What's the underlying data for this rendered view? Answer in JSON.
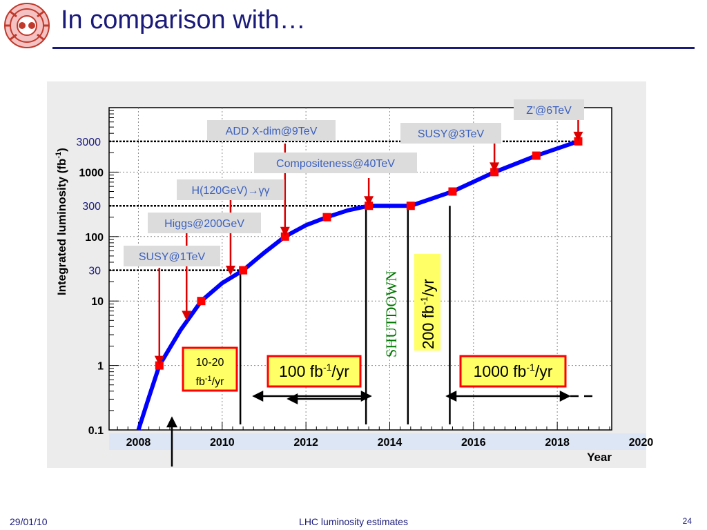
{
  "slide": {
    "title": "In comparison with…",
    "footer_date": "29/01/10",
    "footer_center": "LHC luminosity estimates",
    "page_number": "24",
    "logo_icon": "lhc-magnet-logo-icon"
  },
  "colors": {
    "title": "#1a1a7a",
    "curve": "#0000ff",
    "marker": "#ff0000",
    "arrow": "#dd0000",
    "callout_bg": "#dcdcdc",
    "callout_text": "#3a5fbe",
    "highlight_bg": "#ffff66",
    "highlight_border": "#ff0000",
    "shutdown": "#007700",
    "year_strip": "#dce6f4"
  },
  "chart_data": {
    "type": "line",
    "ylabel": "Integrated luminosity (fb",
    "ylabel_sup": "-1",
    "ylabel_close": ")",
    "xlabel": "Year",
    "y_scale": "log",
    "ylim": [
      0.1,
      10000
    ],
    "xlim": [
      2007.3,
      2019.3
    ],
    "grid": true,
    "x_ticks": [
      {
        "value": 2008,
        "label": "2008"
      },
      {
        "value": 2010,
        "label": "2010"
      },
      {
        "value": 2012,
        "label": "2012"
      },
      {
        "value": 2014,
        "label": "2014"
      },
      {
        "value": 2016,
        "label": "2016"
      },
      {
        "value": 2018,
        "label": "2018"
      },
      {
        "value": 2020,
        "label": "2020"
      }
    ],
    "y_ticks": [
      {
        "value": 0.1,
        "label": "0.1"
      },
      {
        "value": 1,
        "label": "1"
      },
      {
        "value": 10,
        "label": "10"
      },
      {
        "value": 100,
        "label": "100"
      },
      {
        "value": 1000,
        "label": "1000"
      }
    ],
    "reference_levels": [
      {
        "value": 30,
        "label": "30"
      },
      {
        "value": 300,
        "label": "300"
      },
      {
        "value": 3000,
        "label": "3000"
      }
    ],
    "series": [
      {
        "x": [
          2008.5,
          2009.5,
          2010.5,
          2011.5,
          2012.5,
          2013.5,
          2014.5,
          2015.5,
          2016.5,
          2017.5,
          2018.5
        ],
        "y": [
          1,
          10,
          30,
          100,
          200,
          300,
          300,
          500,
          1000,
          1800,
          3000
        ]
      }
    ],
    "curve_start": {
      "x": 2008.0,
      "y": 0.1
    },
    "curve_path": [
      {
        "x": 2008.0,
        "y": 0.1
      },
      {
        "x": 2008.25,
        "y": 0.32
      },
      {
        "x": 2008.5,
        "y": 1
      },
      {
        "x": 2009.0,
        "y": 3.5
      },
      {
        "x": 2009.5,
        "y": 10
      },
      {
        "x": 2010.0,
        "y": 19
      },
      {
        "x": 2010.5,
        "y": 30
      },
      {
        "x": 2011.0,
        "y": 56
      },
      {
        "x": 2011.5,
        "y": 100
      },
      {
        "x": 2012.0,
        "y": 150
      },
      {
        "x": 2012.5,
        "y": 200
      },
      {
        "x": 2013.0,
        "y": 255
      },
      {
        "x": 2013.5,
        "y": 300
      },
      {
        "x": 2014.5,
        "y": 300
      },
      {
        "x": 2015.5,
        "y": 500
      },
      {
        "x": 2016.5,
        "y": 1000
      },
      {
        "x": 2017.5,
        "y": 1800
      },
      {
        "x": 2018.5,
        "y": 3000
      }
    ],
    "phase_lines": [
      2010.5,
      2013.5,
      2014.5,
      2015.5
    ],
    "now_marker": 2008.6,
    "physics_reach": [
      {
        "label": "SUSY@1TeV",
        "x": 2008.5,
        "y": 1
      },
      {
        "label": "Higgs@200GeV",
        "x": 2009.15,
        "y": 5
      },
      {
        "label": "H(120GeV)→γγ",
        "x": 2010.2,
        "y": 25
      },
      {
        "label": "ADD X-dim@9TeV",
        "x": 2011.5,
        "y": 100
      },
      {
        "label": "Compositeness@40TeV",
        "x": 2013.5,
        "y": 300
      },
      {
        "label": "SUSY@3TeV",
        "x": 2016.5,
        "y": 1000
      },
      {
        "label": "Z'@6TeV",
        "x": 2018.5,
        "y": 3000
      }
    ],
    "rate_boxes": [
      {
        "label_line1": "10-20",
        "label_line2": "fb",
        "sup": "-1",
        "suffix": "/yr"
      },
      {
        "label": "100 fb",
        "sup": "-1",
        "suffix": "/yr"
      },
      {
        "label": "1000 fb",
        "sup": "-1",
        "suffix": "/yr"
      },
      {
        "label": "200 fb",
        "sup": "-1",
        "suffix": "/yr"
      }
    ],
    "shutdown_label": "SHUTDOWN"
  }
}
